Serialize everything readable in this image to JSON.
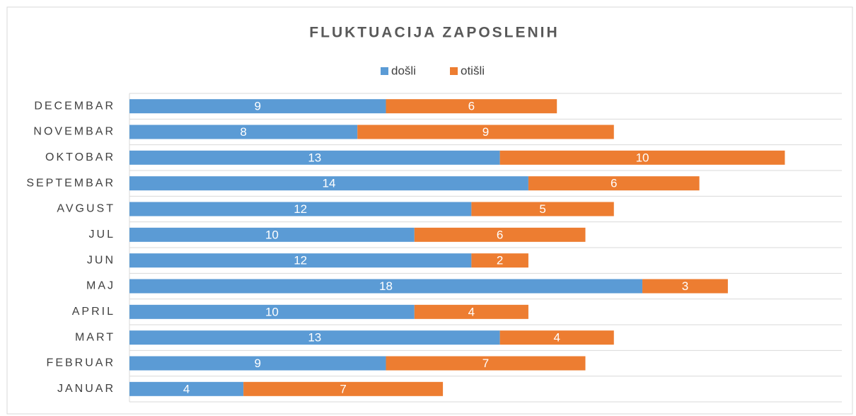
{
  "chart_data": {
    "type": "stacked_barh",
    "title": "FLUKTUACIJA ZAPOSLENIH",
    "categories": [
      "JANUAR",
      "FEBRUAR",
      "MART",
      "APRIL",
      "MAJ",
      "JUN",
      "JUL",
      "AVGUST",
      "SEPTEMBAR",
      "OKTOBAR",
      "NOVEMBAR",
      "DECEMBAR"
    ],
    "series": [
      {
        "name": "došli",
        "color": "#5b9bd5",
        "values": [
          4,
          9,
          13,
          10,
          18,
          12,
          10,
          12,
          14,
          13,
          8,
          9
        ]
      },
      {
        "name": "otišli",
        "color": "#ed7d31",
        "values": [
          7,
          7,
          4,
          4,
          3,
          2,
          6,
          5,
          6,
          10,
          9,
          6
        ]
      }
    ],
    "xlim": [
      0,
      25
    ],
    "grid": true,
    "legend": "top"
  }
}
